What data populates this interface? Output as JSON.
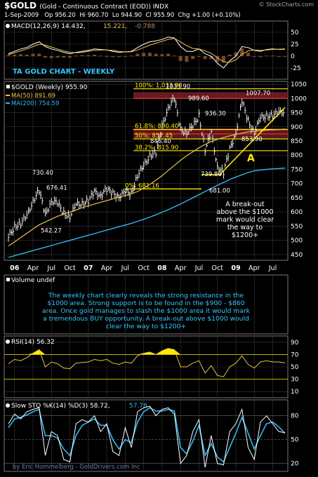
{
  "header": {
    "symbol": "$GOLD",
    "description": "(Gold - Continuous Contract (EOD)) INDX",
    "credit": "© StockCharts.com",
    "date": "1-Sep-2009",
    "open": "Op 956.20",
    "high": "Hi 960.70",
    "low": "Lo 944.90",
    "close": "Cl 955.90",
    "change": "Chg +1.00 (+0.10%)"
  },
  "macd": {
    "label": "MACD(12,26,9) 14.432,",
    "signal_value": "15.221,",
    "hist_value": "-0.788",
    "ticks": [
      "50",
      "25",
      "0",
      "-25"
    ]
  },
  "main": {
    "chart_title": "TA GOLD CHART - WEEKLY",
    "legend_price": "$GOLD (Weekly) 955.90",
    "legend_ma50": "MA(50) 891.69",
    "legend_ma200": "MA(200) 754.59",
    "ticks": [
      "1050",
      "1000",
      "950",
      "900",
      "850",
      "800",
      "750",
      "700",
      "650",
      "600",
      "550",
      "500",
      "450"
    ],
    "price_labels": [
      "730.40",
      "676.41",
      "542.27",
      "1033.90",
      "989.60",
      "936.30",
      "1007.70",
      "846.40",
      "853.90",
      "739.80",
      "681.00"
    ],
    "fib_labels": [
      "100%: 1,033.90",
      "61.8%: 890.40",
      "50%: 857.45",
      "38.2%: 815.90",
      "0%: 681.16"
    ],
    "pattern_label": "A",
    "note": "A break-out above the $1000 mark would clear the way to $1200+"
  },
  "axis": {
    "labels": [
      "06",
      "Apr",
      "Jul",
      "Oct",
      "07",
      "Apr",
      "Jul",
      "Oct",
      "08",
      "Apr",
      "Jul",
      "Oct",
      "09",
      "Apr",
      "Jul"
    ]
  },
  "volume": {
    "label": "Volume undef",
    "commentary": "The weekly chart clearly reveals the strong resistance in the $1000 area. Strong support is to be found in the $900 - $860 area. Once gold manages to slash the $1000 area it would mark a tremendous BUY opportunity. A break-out above $1000 would clear the way to $1200+"
  },
  "rsi": {
    "label": "RSI(14) 56.32",
    "ticks": [
      "90",
      "70",
      "50",
      "30",
      "10"
    ]
  },
  "sto": {
    "label": "Slow STO %K(14) %D(3) 58.72,",
    "d_value": "57.78",
    "ticks": [
      "80",
      "50",
      "20"
    ],
    "footer": "by Eric Hommelberg - GoldDrivers.com Inc"
  },
  "colors": {
    "background": "#000000",
    "price": "#ffffff",
    "ma50": "#e8c34a",
    "ma200": "#33b6ee",
    "fib": "#ffea00",
    "band": "#e0303a",
    "commentary": "#33c6ff",
    "grid": "#3a3a3a"
  },
  "chart_data": [
    {
      "type": "line",
      "title": "$GOLD (Weekly) 955.90",
      "x": [
        "2005-12",
        "2006-01",
        "2006-02",
        "2006-03",
        "2006-04",
        "2006-05",
        "2006-06",
        "2006-07",
        "2006-08",
        "2006-09",
        "2006-10",
        "2006-11",
        "2006-12",
        "2007-01",
        "2007-02",
        "2007-03",
        "2007-04",
        "2007-05",
        "2007-06",
        "2007-07",
        "2007-08",
        "2007-09",
        "2007-10",
        "2007-11",
        "2007-12",
        "2008-01",
        "2008-02",
        "2008-03",
        "2008-04",
        "2008-05",
        "2008-06",
        "2008-07",
        "2008-08",
        "2008-09",
        "2008-10",
        "2008-11",
        "2008-12",
        "2009-01",
        "2009-02",
        "2009-03",
        "2009-04",
        "2009-05",
        "2009-06",
        "2009-07",
        "2009-08",
        "2009-09"
      ],
      "ylim": [
        430,
        1060
      ],
      "series": [
        {
          "name": "$GOLD (Weekly) 955.90",
          "values": [
            510,
            550,
            560,
            585,
            640,
            676,
            590,
            640,
            630,
            595,
            585,
            625,
            630,
            640,
            670,
            660,
            680,
            665,
            655,
            670,
            665,
            730,
            760,
            800,
            810,
            900,
            970,
            1000,
            890,
            880,
            900,
            940,
            820,
            880,
            760,
            740,
            820,
            880,
            990,
            920,
            880,
            930,
            940,
            940,
            950,
            956
          ]
        },
        {
          "name": "MA(50) 891.69",
          "values": [
            480,
            495,
            510,
            525,
            540,
            555,
            565,
            575,
            585,
            592,
            600,
            607,
            615,
            622,
            628,
            634,
            640,
            646,
            652,
            658,
            664,
            672,
            684,
            697,
            712,
            728,
            746,
            764,
            782,
            798,
            812,
            826,
            838,
            848,
            856,
            862,
            868,
            873,
            878,
            882,
            884,
            886,
            888,
            889,
            890,
            892
          ]
        },
        {
          "name": "MA(200) 754.59",
          "values": [
            440,
            446,
            452,
            458,
            464,
            470,
            476,
            482,
            488,
            494,
            500,
            506,
            512,
            518,
            524,
            530,
            536,
            542,
            548,
            554,
            560,
            567,
            574,
            582,
            590,
            599,
            608,
            618,
            628,
            639,
            650,
            661,
            672,
            683,
            694,
            704,
            714,
            723,
            731,
            739,
            745,
            748,
            750,
            752,
            753,
            755
          ]
        }
      ],
      "ticks": [
        450,
        500,
        550,
        600,
        650,
        700,
        750,
        800,
        850,
        900,
        950,
        1000,
        1050
      ]
    },
    {
      "type": "line",
      "title": "MACD(12,26,9)",
      "ylim": [
        -35,
        60
      ],
      "series": [
        {
          "name": "MACD",
          "values": [
            5,
            10,
            15,
            18,
            25,
            30,
            20,
            15,
            12,
            8,
            5,
            8,
            10,
            12,
            15,
            14,
            13,
            10,
            8,
            9,
            10,
            18,
            25,
            30,
            32,
            35,
            40,
            38,
            20,
            10,
            10,
            15,
            5,
            0,
            -15,
            -25,
            -10,
            0,
            20,
            18,
            12,
            10,
            14,
            15,
            14,
            14.432
          ]
        },
        {
          "name": "Signal",
          "values": [
            3,
            7,
            11,
            15,
            20,
            25,
            23,
            19,
            15,
            11,
            8,
            7,
            8,
            10,
            12,
            13,
            13,
            12,
            10,
            9,
            9,
            13,
            18,
            23,
            27,
            31,
            35,
            37,
            30,
            22,
            16,
            15,
            11,
            6,
            -3,
            -12,
            -13,
            -8,
            4,
            11,
            13,
            12,
            13,
            14,
            14.5,
            15.221
          ]
        }
      ]
    },
    {
      "type": "line",
      "title": "RSI(14)",
      "ylim": [
        0,
        100
      ],
      "ticks": [
        10,
        30,
        50,
        70,
        90
      ],
      "series": [
        {
          "name": "RSI(14)",
          "values": [
            55,
            62,
            60,
            65,
            72,
            78,
            50,
            58,
            55,
            48,
            47,
            56,
            57,
            58,
            62,
            60,
            62,
            56,
            54,
            58,
            56,
            68,
            72,
            74,
            70,
            76,
            80,
            78,
            50,
            50,
            56,
            60,
            40,
            52,
            36,
            34,
            50,
            56,
            68,
            54,
            48,
            58,
            60,
            58,
            58,
            56.32
          ]
        }
      ]
    },
    {
      "type": "line",
      "title": "Slow STO %K(14) %D(3)",
      "ylim": [
        10,
        100
      ],
      "ticks": [
        20,
        50,
        80
      ],
      "series": [
        {
          "name": "%K",
          "values": [
            70,
            82,
            76,
            85,
            88,
            90,
            30,
            60,
            55,
            25,
            22,
            70,
            75,
            72,
            80,
            60,
            70,
            35,
            30,
            65,
            40,
            85,
            90,
            92,
            80,
            88,
            90,
            82,
            20,
            30,
            60,
            75,
            15,
            55,
            20,
            18,
            60,
            70,
            88,
            40,
            25,
            72,
            80,
            70,
            60,
            58.72
          ]
        },
        {
          "name": "%D",
          "values": [
            65,
            76,
            78,
            81,
            85,
            88,
            55,
            55,
            52,
            38,
            30,
            55,
            68,
            72,
            76,
            68,
            68,
            50,
            38,
            50,
            46,
            72,
            85,
            90,
            86,
            86,
            88,
            86,
            40,
            32,
            48,
            68,
            30,
            45,
            28,
            22,
            40,
            58,
            78,
            58,
            38,
            55,
            70,
            72,
            66,
            57.78
          ]
        }
      ]
    }
  ]
}
